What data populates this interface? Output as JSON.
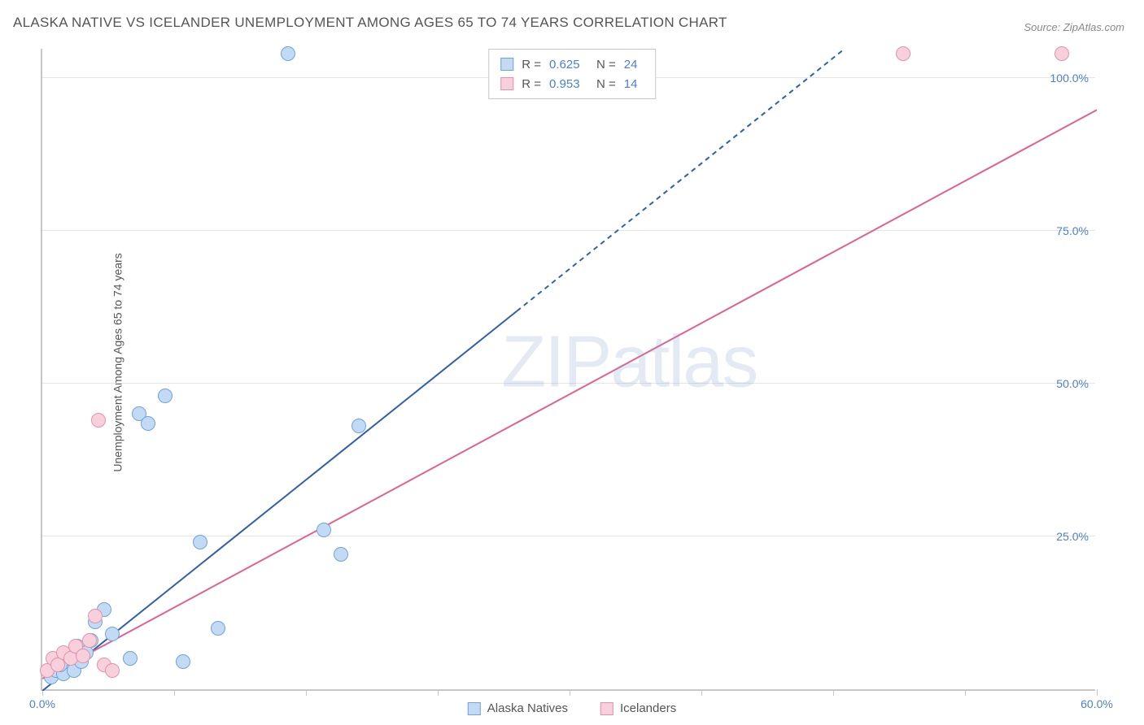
{
  "title": "ALASKA NATIVE VS ICELANDER UNEMPLOYMENT AMONG AGES 65 TO 74 YEARS CORRELATION CHART",
  "source": "Source: ZipAtlas.com",
  "ylabel": "Unemployment Among Ages 65 to 74 years",
  "watermark": {
    "z": "ZIP",
    "atlas": "atlas"
  },
  "chart": {
    "type": "scatter",
    "xlim": [
      0,
      60
    ],
    "ylim": [
      0,
      105
    ],
    "xtick_positions": [
      0,
      7.5,
      15,
      22.5,
      30,
      37.5,
      45,
      52.5,
      60
    ],
    "xtick_labels": {
      "0": "0.0%",
      "60": "60.0%"
    },
    "ytick_positions": [
      25,
      50,
      75,
      100
    ],
    "ytick_labels": [
      "25.0%",
      "50.0%",
      "75.0%",
      "100.0%"
    ],
    "background": "#ffffff",
    "grid_color": "#e5e5e5",
    "axis_color": "#c7c7c7",
    "tick_label_color": "#4b7fd1",
    "marker_radius": 9,
    "series": [
      {
        "name": "Alaska Natives",
        "color_fill": "#c3daf4",
        "color_stroke": "#6ea3de",
        "R": "0.625",
        "N": "24",
        "trend": {
          "slope": 2.3,
          "intercept": 0,
          "solid_until_x": 27,
          "color": "#2e5fb0",
          "width": 2
        },
        "points": [
          [
            0.5,
            2
          ],
          [
            0.8,
            3
          ],
          [
            1.2,
            2.5
          ],
          [
            1.5,
            5
          ],
          [
            1.8,
            3
          ],
          [
            2,
            7
          ],
          [
            2.5,
            6
          ],
          [
            2.8,
            8
          ],
          [
            3,
            11
          ],
          [
            3.5,
            13
          ],
          [
            4,
            9
          ],
          [
            5,
            5
          ],
          [
            5.5,
            45
          ],
          [
            6,
            43.5
          ],
          [
            7,
            48
          ],
          [
            8,
            4.5
          ],
          [
            9,
            24
          ],
          [
            10,
            10
          ],
          [
            14,
            104
          ],
          [
            16,
            26
          ],
          [
            17,
            22
          ],
          [
            18,
            43
          ],
          [
            1,
            4
          ],
          [
            2.2,
            4.5
          ]
        ]
      },
      {
        "name": "Icelanders",
        "color_fill": "#f7d0db",
        "color_stroke": "#e78fae",
        "R": "0.953",
        "N": "14",
        "trend": {
          "slope": 1.55,
          "intercept": 2,
          "solid_until_x": 60,
          "color": "#e36091",
          "width": 2
        },
        "points": [
          [
            0.3,
            3
          ],
          [
            0.6,
            5
          ],
          [
            0.9,
            4
          ],
          [
            1.2,
            6
          ],
          [
            1.6,
            5
          ],
          [
            1.9,
            7
          ],
          [
            2.3,
            5.5
          ],
          [
            2.7,
            8
          ],
          [
            3,
            12
          ],
          [
            3.5,
            4
          ],
          [
            4,
            3
          ],
          [
            3.2,
            44
          ],
          [
            49,
            104
          ],
          [
            58,
            104
          ]
        ]
      }
    ]
  },
  "legend_top": {
    "r_label": "R =",
    "n_label": "N ="
  },
  "legend_bottom": {
    "items": [
      "Alaska Natives",
      "Icelanders"
    ]
  }
}
